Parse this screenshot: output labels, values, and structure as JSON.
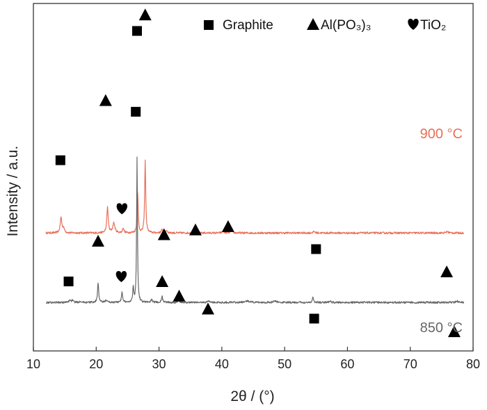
{
  "chart_data": {
    "type": "line",
    "xlabel": "2θ / (°)",
    "ylabel": "Intensity / a.u.",
    "xlim": [
      10,
      80
    ],
    "xticks": [
      10,
      20,
      30,
      40,
      50,
      60,
      70,
      80
    ],
    "yticks": [],
    "grid": false,
    "legend": {
      "placement": "top-right",
      "entries": [
        {
          "marker": "square",
          "label": "Graphite"
        },
        {
          "marker": "triangle",
          "label": "Al(PO₃)₃"
        },
        {
          "marker": "heart",
          "label": "TiO₂"
        }
      ]
    },
    "series": [
      {
        "name": "900 °C",
        "color": "#e8705a",
        "baseline": 0.53,
        "peaks": [
          {
            "x": 14.4,
            "h": 0.095,
            "w": 0.15
          },
          {
            "x": 14.8,
            "h": 0.03,
            "w": 0.15
          },
          {
            "x": 21.8,
            "h": 0.16,
            "w": 0.13
          },
          {
            "x": 22.8,
            "h": 0.06,
            "w": 0.2
          },
          {
            "x": 24.3,
            "h": 0.032,
            "w": 0.12
          },
          {
            "x": 26.6,
            "h": 0.25,
            "w": 0.1
          },
          {
            "x": 27.8,
            "h": 0.445,
            "w": 0.1
          },
          {
            "x": 30.5,
            "h": 0.02,
            "w": 0.15
          },
          {
            "x": 31.2,
            "h": 0.015,
            "w": 0.15
          },
          {
            "x": 35.8,
            "h": 0.018,
            "w": 0.15
          },
          {
            "x": 40.2,
            "h": 0.012,
            "w": 0.15
          },
          {
            "x": 41.5,
            "h": 0.015,
            "w": 0.15
          },
          {
            "x": 54.7,
            "h": 0.008,
            "w": 0.2
          },
          {
            "x": 75.9,
            "h": 0.008,
            "w": 0.2
          }
        ],
        "markers": [
          {
            "shape": "square",
            "x": 14.3,
            "y": 0.98
          },
          {
            "shape": "triangle",
            "x": 21.5,
            "y": 1.35
          },
          {
            "shape": "heart",
            "x": 24.1,
            "y": 0.68
          },
          {
            "shape": "square",
            "x": 26.3,
            "y": 1.28
          },
          {
            "shape": "triangle",
            "x": 27.8,
            "y": 1.88
          },
          {
            "shape": "triangle",
            "x": 30.8,
            "y": 0.52
          },
          {
            "shape": "triangle",
            "x": 35.8,
            "y": 0.55
          },
          {
            "shape": "triangle",
            "x": 41.0,
            "y": 0.57
          },
          {
            "shape": "square",
            "x": 55.0,
            "y": 0.43
          },
          {
            "shape": "triangle",
            "x": 75.8,
            "y": 0.29
          }
        ]
      },
      {
        "name": "850 °C",
        "color": "#676767",
        "baseline": 0.1,
        "peaks": [
          {
            "x": 15.8,
            "h": 0.015,
            "w": 0.15
          },
          {
            "x": 16.2,
            "h": 0.012,
            "w": 0.15
          },
          {
            "x": 17.5,
            "h": 0.008,
            "w": 0.2
          },
          {
            "x": 20.3,
            "h": 0.12,
            "w": 0.11
          },
          {
            "x": 21.6,
            "h": 0.015,
            "w": 0.15
          },
          {
            "x": 24.1,
            "h": 0.06,
            "w": 0.12
          },
          {
            "x": 25.9,
            "h": 0.09,
            "w": 0.1
          },
          {
            "x": 26.5,
            "h": 0.895,
            "w": 0.08
          },
          {
            "x": 28.8,
            "h": 0.015,
            "w": 0.15
          },
          {
            "x": 30.5,
            "h": 0.035,
            "w": 0.12
          },
          {
            "x": 33.1,
            "h": 0.018,
            "w": 0.15
          },
          {
            "x": 37.9,
            "h": 0.012,
            "w": 0.15
          },
          {
            "x": 44.1,
            "h": 0.01,
            "w": 0.3
          },
          {
            "x": 48.5,
            "h": 0.008,
            "w": 0.3
          },
          {
            "x": 54.5,
            "h": 0.03,
            "w": 0.12
          },
          {
            "x": 57.2,
            "h": 0.007,
            "w": 0.2
          },
          {
            "x": 77.4,
            "h": 0.01,
            "w": 0.15
          }
        ],
        "markers": [
          {
            "shape": "square",
            "x": 15.6,
            "y": 0.23
          },
          {
            "shape": "triangle",
            "x": 20.3,
            "y": 0.48
          },
          {
            "shape": "heart",
            "x": 24.0,
            "y": 0.26
          },
          {
            "shape": "square",
            "x": 26.5,
            "y": 1.78
          },
          {
            "shape": "triangle",
            "x": 30.5,
            "y": 0.23
          },
          {
            "shape": "triangle",
            "x": 33.2,
            "y": 0.14
          },
          {
            "shape": "triangle",
            "x": 37.8,
            "y": 0.06
          },
          {
            "shape": "square",
            "x": 54.7,
            "y": 0.0
          },
          {
            "shape": "triangle",
            "x": 77.0,
            "y": -0.08
          }
        ]
      }
    ]
  }
}
